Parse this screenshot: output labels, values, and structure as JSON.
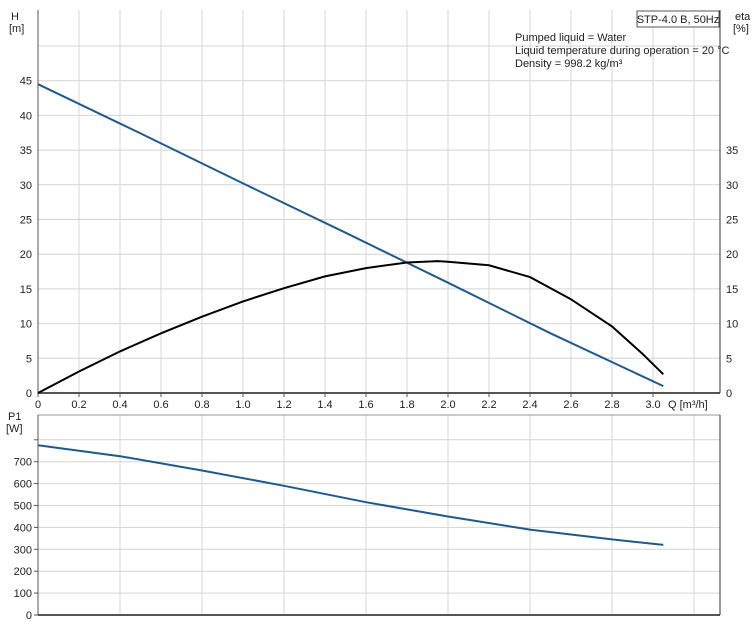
{
  "chart_data": [
    {
      "type": "line",
      "title": "STP-4.0 B, 50Hz",
      "annotations": [
        "Pumped liquid = Water",
        "Liquid temperature during operation = 20 °C",
        "Density = 998.2 kg/m³"
      ],
      "xlabel": "Q [m³/h]",
      "ylabel": "H\n[m]",
      "ylabel_left_unit": "[m]",
      "ylabel_left_name": "H",
      "ylabel_right_name": "eta",
      "ylabel_right_unit": "[%]",
      "xlim": [
        0,
        3.3
      ],
      "ylim": [
        0,
        50
      ],
      "grid": true,
      "x_ticks": [
        "0",
        "0.2",
        "0.4",
        "0.6",
        "0.8",
        "1.0",
        "1.2",
        "1.4",
        "1.6",
        "1.8",
        "2.0",
        "2.2",
        "2.4",
        "2.6",
        "2.8",
        "3.0"
      ],
      "y_ticks_left": [
        "0",
        "5",
        "10",
        "15",
        "20",
        "25",
        "30",
        "35",
        "40",
        "45"
      ],
      "y_ticks_right": [
        "0",
        "5",
        "10",
        "15",
        "20",
        "25",
        "30",
        "35"
      ],
      "series": [
        {
          "key": "H",
          "color": "#1f5a8c",
          "x": [
            0,
            0.5,
            1.0,
            1.5,
            2.0,
            2.5,
            3.05
          ],
          "y": [
            44.5,
            37.4,
            30.2,
            23.1,
            15.9,
            8.6,
            1.0
          ]
        },
        {
          "key": "eta",
          "color": "#000000",
          "x": [
            0,
            0.2,
            0.4,
            0.6,
            0.8,
            1.0,
            1.2,
            1.4,
            1.6,
            1.8,
            1.95,
            2.0,
            2.2,
            2.4,
            2.6,
            2.8,
            2.95,
            3.05
          ],
          "y": [
            0,
            3.1,
            6.0,
            8.6,
            11.0,
            13.2,
            15.1,
            16.8,
            18.0,
            18.8,
            19.0,
            18.9,
            18.4,
            16.7,
            13.5,
            9.6,
            5.6,
            2.7
          ]
        }
      ]
    },
    {
      "type": "line",
      "ylabel_name": "P1",
      "ylabel_unit": "[W]",
      "xlim": [
        0,
        3.3
      ],
      "ylim": [
        0,
        900
      ],
      "grid": true,
      "y_ticks": [
        "0",
        "100",
        "200",
        "300",
        "400",
        "500",
        "600",
        "700"
      ],
      "series": [
        {
          "key": "P1",
          "color": "#1f5a8c",
          "x": [
            0,
            0.4,
            0.8,
            1.2,
            1.6,
            2.0,
            2.4,
            2.8,
            3.05
          ],
          "y": [
            775,
            725,
            660,
            590,
            515,
            450,
            390,
            345,
            320
          ]
        }
      ]
    }
  ]
}
